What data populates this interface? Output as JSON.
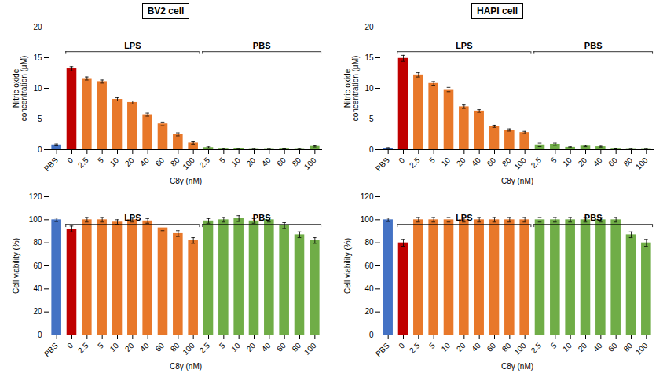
{
  "chart_data": [
    {
      "type": "bar",
      "title": "BV2 cell",
      "categories": [
        "PBS",
        "0",
        "2.5",
        "5",
        "10",
        "20",
        "40",
        "60",
        "80",
        "100",
        "2.5",
        "5",
        "10",
        "20",
        "40",
        "60",
        "80",
        "100"
      ],
      "values": [
        0.8,
        13.2,
        11.6,
        11.1,
        8.2,
        7.7,
        5.7,
        4.2,
        2.5,
        1.1,
        0.35,
        0.1,
        0.15,
        0.05,
        0.05,
        0.1,
        0.05,
        0.55
      ],
      "errors": [
        0.15,
        0.35,
        0.25,
        0.25,
        0.25,
        0.25,
        0.25,
        0.3,
        0.25,
        0.18,
        0.12,
        0.07,
        0.07,
        0.04,
        0.04,
        0.04,
        0.04,
        0.1
      ],
      "colors": [
        "#4472C4",
        "#C00000",
        "#E8782A",
        "#E8782A",
        "#E8782A",
        "#E8782A",
        "#E8782A",
        "#E8782A",
        "#E8782A",
        "#E8782A",
        "#70AD47",
        "#70AD47",
        "#70AD47",
        "#70AD47",
        "#70AD47",
        "#70AD47",
        "#70AD47",
        "#70AD47"
      ],
      "xlabel": "C8γ (nM)",
      "ylabel": "Nitric oxide\nconcentration (μM)",
      "ylim": [
        0,
        20
      ],
      "yticks": [
        0,
        5,
        10,
        15,
        20
      ],
      "grid": false,
      "annotations": [
        {
          "text": "LPS",
          "start": 1,
          "end": 9
        },
        {
          "text": "PBS",
          "start": 10,
          "end": 17
        }
      ]
    },
    {
      "type": "bar",
      "title": "HAPI cell",
      "categories": [
        "PBS",
        "0",
        "2.5",
        "5",
        "10",
        "20",
        "40",
        "60",
        "80",
        "100",
        "2.5",
        "5",
        "10",
        "20",
        "40",
        "60",
        "80",
        "100"
      ],
      "values": [
        0.25,
        14.9,
        12.2,
        10.8,
        9.8,
        7.0,
        6.3,
        3.8,
        3.2,
        2.8,
        0.8,
        0.9,
        0.4,
        0.6,
        0.5,
        0.1,
        0.05,
        0.05
      ],
      "errors": [
        0.08,
        0.5,
        0.35,
        0.3,
        0.35,
        0.28,
        0.22,
        0.18,
        0.18,
        0.18,
        0.28,
        0.18,
        0.08,
        0.1,
        0.08,
        0.04,
        0.04,
        0.04
      ],
      "colors": [
        "#4472C4",
        "#C00000",
        "#E8782A",
        "#E8782A",
        "#E8782A",
        "#E8782A",
        "#E8782A",
        "#E8782A",
        "#E8782A",
        "#E8782A",
        "#70AD47",
        "#70AD47",
        "#70AD47",
        "#70AD47",
        "#70AD47",
        "#70AD47",
        "#70AD47",
        "#70AD47"
      ],
      "xlabel": "C8γ (nM)",
      "ylabel": "Nitric oxide\nconcentration (μM)",
      "ylim": [
        0,
        20
      ],
      "yticks": [
        0,
        5,
        10,
        15,
        20
      ],
      "grid": false,
      "annotations": [
        {
          "text": "LPS",
          "start": 1,
          "end": 9
        },
        {
          "text": "PBS",
          "start": 10,
          "end": 17
        }
      ]
    },
    {
      "type": "bar",
      "categories": [
        "PBS",
        "0",
        "2.5",
        "5",
        "10",
        "20",
        "40",
        "60",
        "80",
        "100",
        "2.5",
        "5",
        "10",
        "20",
        "40",
        "60",
        "80",
        "100"
      ],
      "values": [
        100,
        92,
        100,
        100,
        98,
        100,
        99,
        93,
        88,
        82,
        99,
        100,
        101,
        99,
        100,
        95,
        87,
        82
      ],
      "errors": [
        1.5,
        2.5,
        2,
        2,
        2,
        2,
        2,
        2.5,
        2.5,
        2.5,
        2,
        2,
        2.5,
        2,
        2,
        2.5,
        2.5,
        2.5
      ],
      "colors": [
        "#4472C4",
        "#C00000",
        "#E8782A",
        "#E8782A",
        "#E8782A",
        "#E8782A",
        "#E8782A",
        "#E8782A",
        "#E8782A",
        "#E8782A",
        "#70AD47",
        "#70AD47",
        "#70AD47",
        "#70AD47",
        "#70AD47",
        "#70AD47",
        "#70AD47",
        "#70AD47"
      ],
      "xlabel": "C8γ (nM)",
      "ylabel": "Cell viability (%)",
      "ylim": [
        0,
        120
      ],
      "yticks": [
        0,
        20,
        40,
        60,
        80,
        100,
        120
      ],
      "grid": false,
      "annotations": [
        {
          "text": "LPS",
          "start": 1,
          "end": 9
        },
        {
          "text": "PBS",
          "start": 10,
          "end": 17
        }
      ]
    },
    {
      "type": "bar",
      "categories": [
        "PBS",
        "0",
        "2.5",
        "5",
        "10",
        "20",
        "40",
        "60",
        "80",
        "100",
        "2.5",
        "5",
        "10",
        "20",
        "40",
        "60",
        "80",
        "100"
      ],
      "values": [
        100,
        80,
        100,
        100,
        100,
        100,
        100,
        100,
        100,
        100,
        100,
        100,
        100,
        100,
        100,
        100,
        87,
        80
      ],
      "errors": [
        1.5,
        3,
        2,
        2,
        2,
        2,
        2,
        2,
        2,
        2,
        2,
        2,
        2,
        2,
        2,
        2,
        2.5,
        3
      ],
      "colors": [
        "#4472C4",
        "#C00000",
        "#E8782A",
        "#E8782A",
        "#E8782A",
        "#E8782A",
        "#E8782A",
        "#E8782A",
        "#E8782A",
        "#E8782A",
        "#70AD47",
        "#70AD47",
        "#70AD47",
        "#70AD47",
        "#70AD47",
        "#70AD47",
        "#70AD47",
        "#70AD47"
      ],
      "xlabel": "C8γ (nM)",
      "ylabel": "Cell viability (%)",
      "ylim": [
        0,
        120
      ],
      "yticks": [
        0,
        20,
        40,
        60,
        80,
        100,
        120
      ],
      "grid": false,
      "annotations": [
        {
          "text": "LPS",
          "start": 1,
          "end": 9
        },
        {
          "text": "PBS",
          "start": 10,
          "end": 17
        }
      ]
    }
  ]
}
